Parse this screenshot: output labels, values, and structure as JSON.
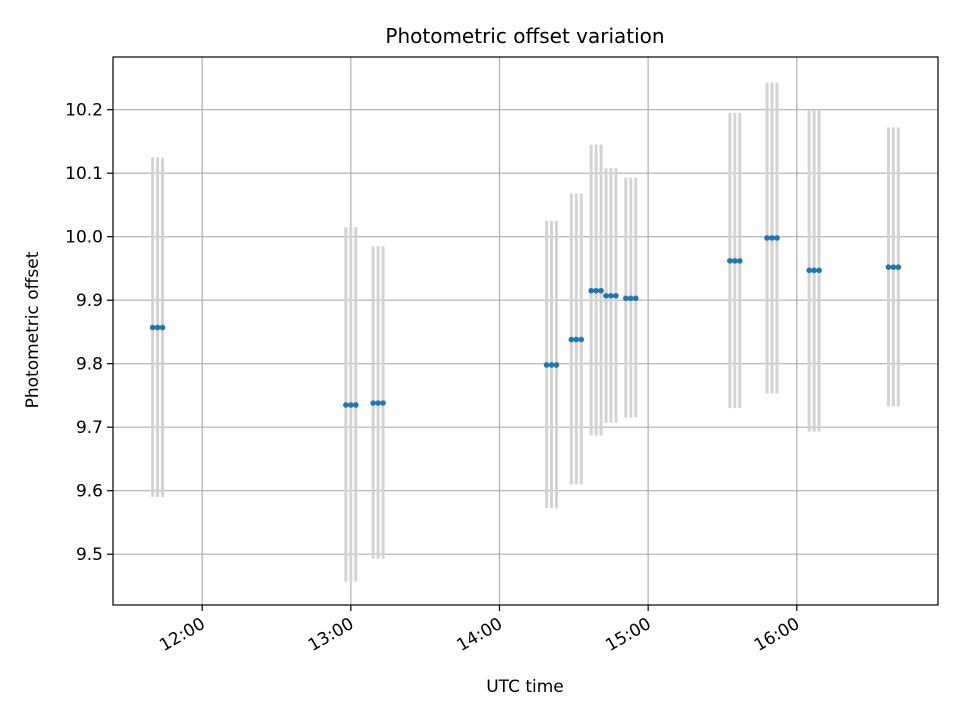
{
  "chart_data": {
    "type": "scatter",
    "title": "Photometric offset variation",
    "xlabel": "UTC time",
    "ylabel": "Photometric offset",
    "x_axis": "time",
    "xlim": [
      "11:24",
      "16:57"
    ],
    "ylim": [
      9.42,
      10.283
    ],
    "grid": true,
    "x_ticks": [
      "12:00",
      "13:00",
      "14:00",
      "15:00",
      "16:00"
    ],
    "y_ticks": [
      9.5,
      9.6,
      9.7,
      9.8,
      9.9,
      10.0,
      10.1,
      10.2
    ],
    "marker_color": "#1f77b4",
    "errorbar_color": "#d3d3d3",
    "groups": [
      {
        "times": [
          "11:40",
          "11:42",
          "11:44"
        ],
        "y": 9.857,
        "low": 9.59,
        "high": 10.125
      },
      {
        "times": [
          "12:58",
          "13:00",
          "13:02"
        ],
        "y": 9.735,
        "low": 9.457,
        "high": 10.015
      },
      {
        "times": [
          "13:09",
          "13:11",
          "13:13"
        ],
        "y": 9.738,
        "low": 9.493,
        "high": 9.985
      },
      {
        "times": [
          "14:19",
          "14:21",
          "14:23"
        ],
        "y": 9.798,
        "low": 9.573,
        "high": 10.025
      },
      {
        "times": [
          "14:29",
          "14:31",
          "14:33"
        ],
        "y": 9.838,
        "low": 9.61,
        "high": 10.068
      },
      {
        "times": [
          "14:37",
          "14:39",
          "14:41"
        ],
        "y": 9.915,
        "low": 9.687,
        "high": 10.145
      },
      {
        "times": [
          "14:43",
          "14:45",
          "14:47"
        ],
        "y": 9.907,
        "low": 9.707,
        "high": 10.108
      },
      {
        "times": [
          "14:51",
          "14:53",
          "14:55"
        ],
        "y": 9.903,
        "low": 9.715,
        "high": 10.093
      },
      {
        "times": [
          "15:33",
          "15:35",
          "15:37"
        ],
        "y": 9.962,
        "low": 9.73,
        "high": 10.195
      },
      {
        "times": [
          "15:48",
          "15:50",
          "15:52"
        ],
        "y": 9.998,
        "low": 9.753,
        "high": 10.243
      },
      {
        "times": [
          "16:05",
          "16:07",
          "16:09"
        ],
        "y": 9.947,
        "low": 9.693,
        "high": 10.2
      },
      {
        "times": [
          "16:37",
          "16:39",
          "16:41"
        ],
        "y": 9.952,
        "low": 9.733,
        "high": 10.172
      }
    ]
  }
}
